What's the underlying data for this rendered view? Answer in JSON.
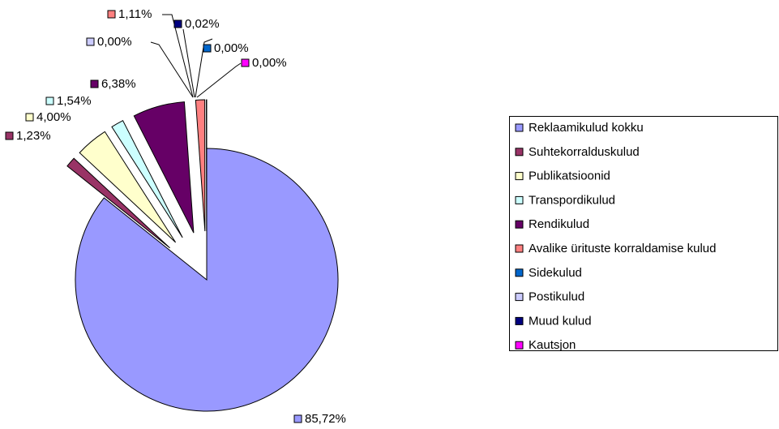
{
  "chart_data": {
    "type": "pie",
    "categories": [
      "Reklaamikulud kokku",
      "Suhtekorralduskulud",
      "Publikatsioonid",
      "Transpordikulud",
      "Rendikulud",
      "Avalike ürituste korraldamise kulud",
      "Sidekulud",
      "Postikulud",
      "Muud kulud",
      "Kautsjon"
    ],
    "values": [
      85.72,
      1.23,
      4.0,
      1.54,
      6.38,
      1.11,
      0.0,
      0.0,
      0.02,
      0.0
    ],
    "value_labels": [
      "85,72%",
      "1,23%",
      "4,00%",
      "1,54%",
      "6,38%",
      "1,11%",
      "0,00%",
      "0,00%",
      "0,02%",
      "0,00%"
    ],
    "colors": [
      "#9999ff",
      "#993366",
      "#ffffcc",
      "#ccffff",
      "#660066",
      "#ff8080",
      "#0066cc",
      "#ccccff",
      "#000080",
      "#ff00ff"
    ],
    "legend": "right"
  }
}
